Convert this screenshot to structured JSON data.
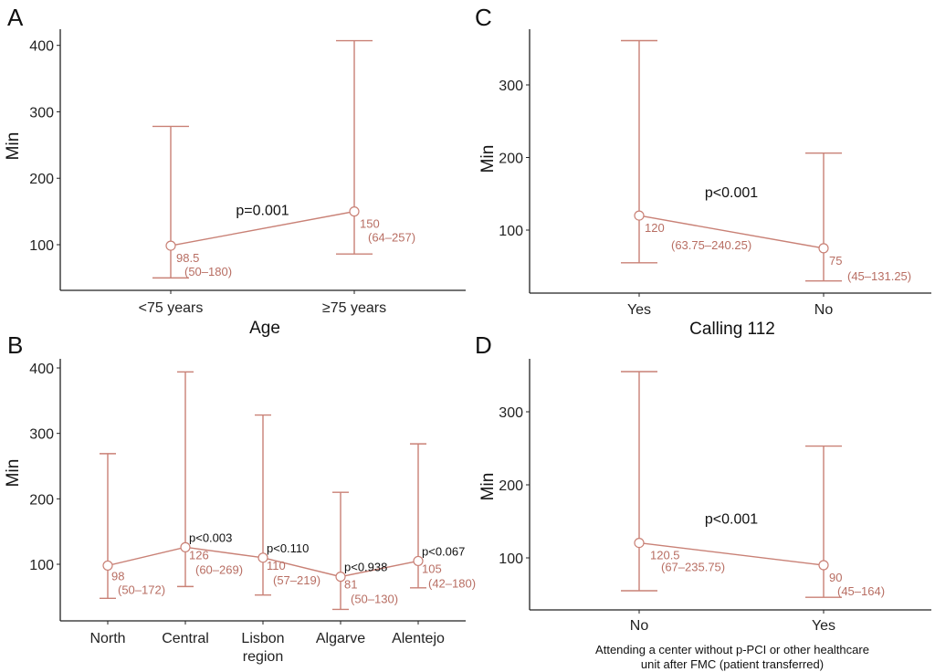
{
  "colors": {
    "series": "#c98176",
    "label": "#b86e63",
    "axis": "#222222"
  },
  "chart_data": [
    {
      "panel": "A",
      "type": "line",
      "xlabel": "Age",
      "ylabel": "Min",
      "yticks": [
        100,
        200,
        300,
        400
      ],
      "ylim": [
        30,
        425
      ],
      "categories": [
        "<75 years",
        "≥75 years"
      ],
      "median": [
        98.5,
        150
      ],
      "lower": [
        50,
        86
      ],
      "upper": [
        278,
        407
      ],
      "labels": [
        [
          "98.5",
          "(50–180)"
        ],
        [
          "150",
          "(64–257)"
        ]
      ],
      "pvalues": [
        {
          "text": "p=0.001",
          "between": [
            0,
            1
          ],
          "y": 145
        }
      ]
    },
    {
      "panel": "B",
      "type": "line",
      "xlabel": "",
      "ylabel": "Min",
      "yticks": [
        100,
        200,
        300,
        400
      ],
      "ylim": [
        12,
        430
      ],
      "categories": [
        "North",
        "Central",
        "Lisbon\nregion",
        "Algarve",
        "Alentejo"
      ],
      "median": [
        98,
        126,
        110,
        81,
        105
      ],
      "lower": [
        48,
        66,
        53,
        31,
        64
      ],
      "upper": [
        269,
        394,
        328,
        210,
        284
      ],
      "labels": [
        [
          "98",
          "(50–172)"
        ],
        [
          "126",
          "(60–269)"
        ],
        [
          "110",
          "(57–219)"
        ],
        [
          "81",
          "(50–130)"
        ],
        [
          "105",
          "(42–180)"
        ]
      ],
      "pvalues": [
        {
          "text": "p<0.003",
          "at": 1
        },
        {
          "text": "p<0.110",
          "at": 2
        },
        {
          "text": "p<0.938",
          "at": 3
        },
        {
          "text": "p<0.067",
          "at": 4
        }
      ]
    },
    {
      "panel": "C",
      "type": "line",
      "xlabel": "Calling 112",
      "ylabel": "Min",
      "yticks": [
        100,
        200,
        300
      ],
      "ylim": [
        12,
        375
      ],
      "categories": [
        "Yes",
        "No"
      ],
      "median": [
        120,
        75
      ],
      "lower": [
        55,
        30
      ],
      "upper": [
        361,
        206
      ],
      "labels": [
        [
          "120",
          "(63.75–240.25)"
        ],
        [
          "75",
          "(45–131.25)"
        ]
      ],
      "pvalues": [
        {
          "text": "p<0.001",
          "between": [
            0,
            1
          ],
          "y": 145
        }
      ]
    },
    {
      "panel": "D",
      "type": "line",
      "xlabel": "Attending a center without p-PCI or other healthcare\nunit after FMC (patient transferred)",
      "ylabel": "Min",
      "yticks": [
        100,
        200,
        300
      ],
      "ylim": [
        30,
        375
      ],
      "categories": [
        "No",
        "Yes"
      ],
      "median": [
        120.5,
        90
      ],
      "lower": [
        55,
        46
      ],
      "upper": [
        355,
        253
      ],
      "labels": [
        [
          "120.5",
          "(67–235.75)"
        ],
        [
          "90",
          "(45–164)"
        ]
      ],
      "pvalues": [
        {
          "text": "p<0.001",
          "between": [
            0,
            1
          ],
          "y": 147
        }
      ]
    }
  ]
}
